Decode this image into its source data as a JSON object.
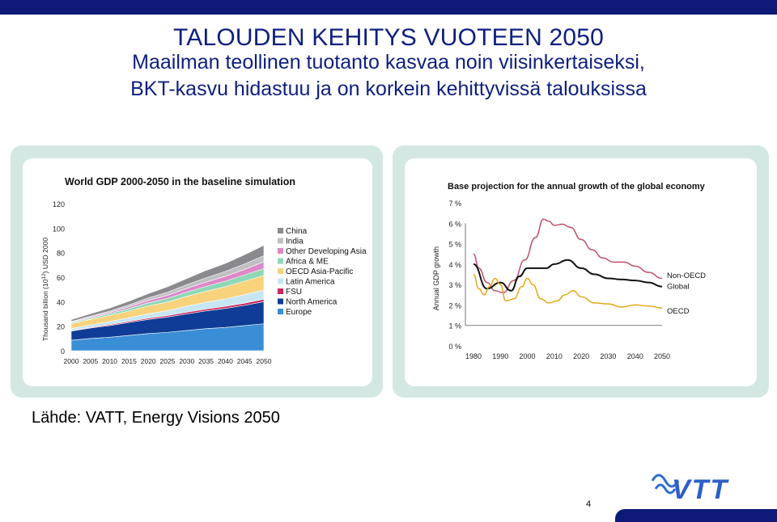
{
  "title": "TALOUDEN KEHITYS VUOTEEN 2050",
  "subtitle_line1": "Maailman teollinen tuotanto kasvaa noin viisinkertaiseksi,",
  "subtitle_line2": "BKT-kasvu hidastuu ja on korkein kehittyvissä talouksissa",
  "source": "Lähde: VATT, Energy Visions 2050",
  "page_number": "4",
  "logo_text": "VTT",
  "colors": {
    "navy": "#0e1a78",
    "frame": "#d4e8e3",
    "title": "#0e1f7f"
  },
  "chart_data": [
    {
      "type": "area",
      "title": "World GDP 2000-2050 in the baseline simulation",
      "ylabel": "Thousand billion (10^12) USD 2000",
      "ylabel_parts": {
        "pre": "Thousand billion (10",
        "sup": "12",
        "post": ") USD 2000"
      },
      "xlabel": "",
      "ylim": [
        0,
        120
      ],
      "yticks": [
        "0",
        "20",
        "40",
        "60",
        "80",
        "100",
        "120"
      ],
      "x": [
        "2000",
        "2005",
        "2010",
        "2015",
        "2020",
        "2025",
        "2030",
        "2035",
        "2040",
        "2045",
        "2050"
      ],
      "series": [
        {
          "name": "Europe",
          "color": "#3a8ed6",
          "values": [
            8.5,
            10,
            11,
            12.5,
            14,
            15,
            16.5,
            18,
            19,
            20.5,
            22
          ]
        },
        {
          "name": "North America",
          "color": "#0f3c96",
          "values": [
            7.5,
            8.5,
            9.5,
            10.5,
            11.5,
            12.5,
            13.5,
            14.5,
            15.5,
            16.5,
            18
          ]
        },
        {
          "name": "FSU",
          "color": "#c8285a",
          "values": [
            0.5,
            0.6,
            0.8,
            0.9,
            1.1,
            1.2,
            1.4,
            1.5,
            1.7,
            1.8,
            2
          ]
        },
        {
          "name": "Latin America",
          "color": "#c6e6f4",
          "values": [
            1.5,
            2,
            2.5,
            3,
            3.5,
            4,
            5,
            5.5,
            6,
            7,
            7.5
          ]
        },
        {
          "name": "OECD Asia-Pacific",
          "color": "#f9d27c",
          "values": [
            4,
            4.5,
            5,
            5.5,
            6.5,
            7,
            8,
            9,
            10,
            11,
            12
          ]
        },
        {
          "name": "Africa & ME",
          "color": "#8ed8b6",
          "values": [
            0.8,
            1,
            1.5,
            2,
            2.5,
            3,
            3.5,
            4,
            4.5,
            5,
            5.5
          ]
        },
        {
          "name": "Other Developing Asia",
          "color": "#dd88c8",
          "values": [
            0.5,
            0.8,
            1,
            1.5,
            2,
            2.5,
            3,
            3.5,
            4,
            4.5,
            5.5
          ]
        },
        {
          "name": "India",
          "color": "#c0c0c4",
          "values": [
            0.5,
            0.8,
            1,
            1.5,
            2,
            2.5,
            3,
            3.5,
            4,
            4.5,
            5
          ]
        },
        {
          "name": "China",
          "color": "#8a8a8e",
          "values": [
            1.5,
            2,
            2.5,
            3,
            3.5,
            4.5,
            5,
            6,
            6.5,
            7.5,
            8.5
          ]
        }
      ],
      "legend_order": [
        "China",
        "India",
        "Other Developing Asia",
        "Africa & ME",
        "OECD Asia-Pacific",
        "Latin America",
        "FSU",
        "North America",
        "Europe"
      ],
      "legend": "right"
    },
    {
      "type": "line",
      "title": "Base projection for the annual growth of the global economy",
      "ylabel": "Annual GDP growth",
      "xlabel": "",
      "ylim": [
        0,
        7
      ],
      "xlim": [
        1977,
        2050
      ],
      "yticks": [
        "0 %",
        "1 %",
        "2 %",
        "3 %",
        "4 %",
        "5 %",
        "6 %",
        "7 %"
      ],
      "xticks": [
        "1980",
        "1990",
        "2000",
        "2010",
        "2020",
        "2030",
        "2040",
        "2050"
      ],
      "series": [
        {
          "name": "Non-OECD",
          "color": "#c0506a",
          "x": [
            1980,
            1982,
            1985,
            1988,
            1991,
            1995,
            1999,
            2003,
            2006,
            2008,
            2010,
            2013,
            2016,
            2020,
            2024,
            2028,
            2032,
            2036,
            2040,
            2045,
            2050
          ],
          "y": [
            4.5,
            3.8,
            3.1,
            2.7,
            2.6,
            3.2,
            4.2,
            5.3,
            6.2,
            6.1,
            5.9,
            5.95,
            5.8,
            5.2,
            4.7,
            4.3,
            4.1,
            4.1,
            3.9,
            3.6,
            3.3
          ]
        },
        {
          "name": "Global",
          "color": "#111111",
          "x": [
            1980,
            1985,
            1990,
            1994,
            1997,
            2000,
            2004,
            2007,
            2010,
            2015,
            2020,
            2025,
            2030,
            2035,
            2040,
            2045,
            2050
          ],
          "y": [
            4.0,
            2.8,
            3.1,
            2.7,
            3.4,
            3.8,
            3.8,
            3.8,
            4.0,
            4.2,
            3.8,
            3.5,
            3.3,
            3.25,
            3.2,
            3.1,
            2.9
          ]
        },
        {
          "name": "OECD",
          "color": "#e8a818",
          "x": [
            1980,
            1982,
            1984,
            1986,
            1988,
            1990,
            1992,
            1995,
            1998,
            2000,
            2002,
            2005,
            2008,
            2011,
            2014,
            2017,
            2020,
            2025,
            2030,
            2035,
            2040,
            2045,
            2050
          ],
          "y": [
            3.5,
            2.8,
            2.5,
            2.9,
            3.3,
            3.0,
            2.2,
            2.3,
            2.9,
            3.3,
            3.0,
            2.3,
            2.1,
            2.2,
            2.5,
            2.7,
            2.4,
            2.1,
            2.05,
            1.9,
            2.0,
            1.95,
            1.85
          ]
        }
      ],
      "legend": "line-end labels"
    }
  ]
}
